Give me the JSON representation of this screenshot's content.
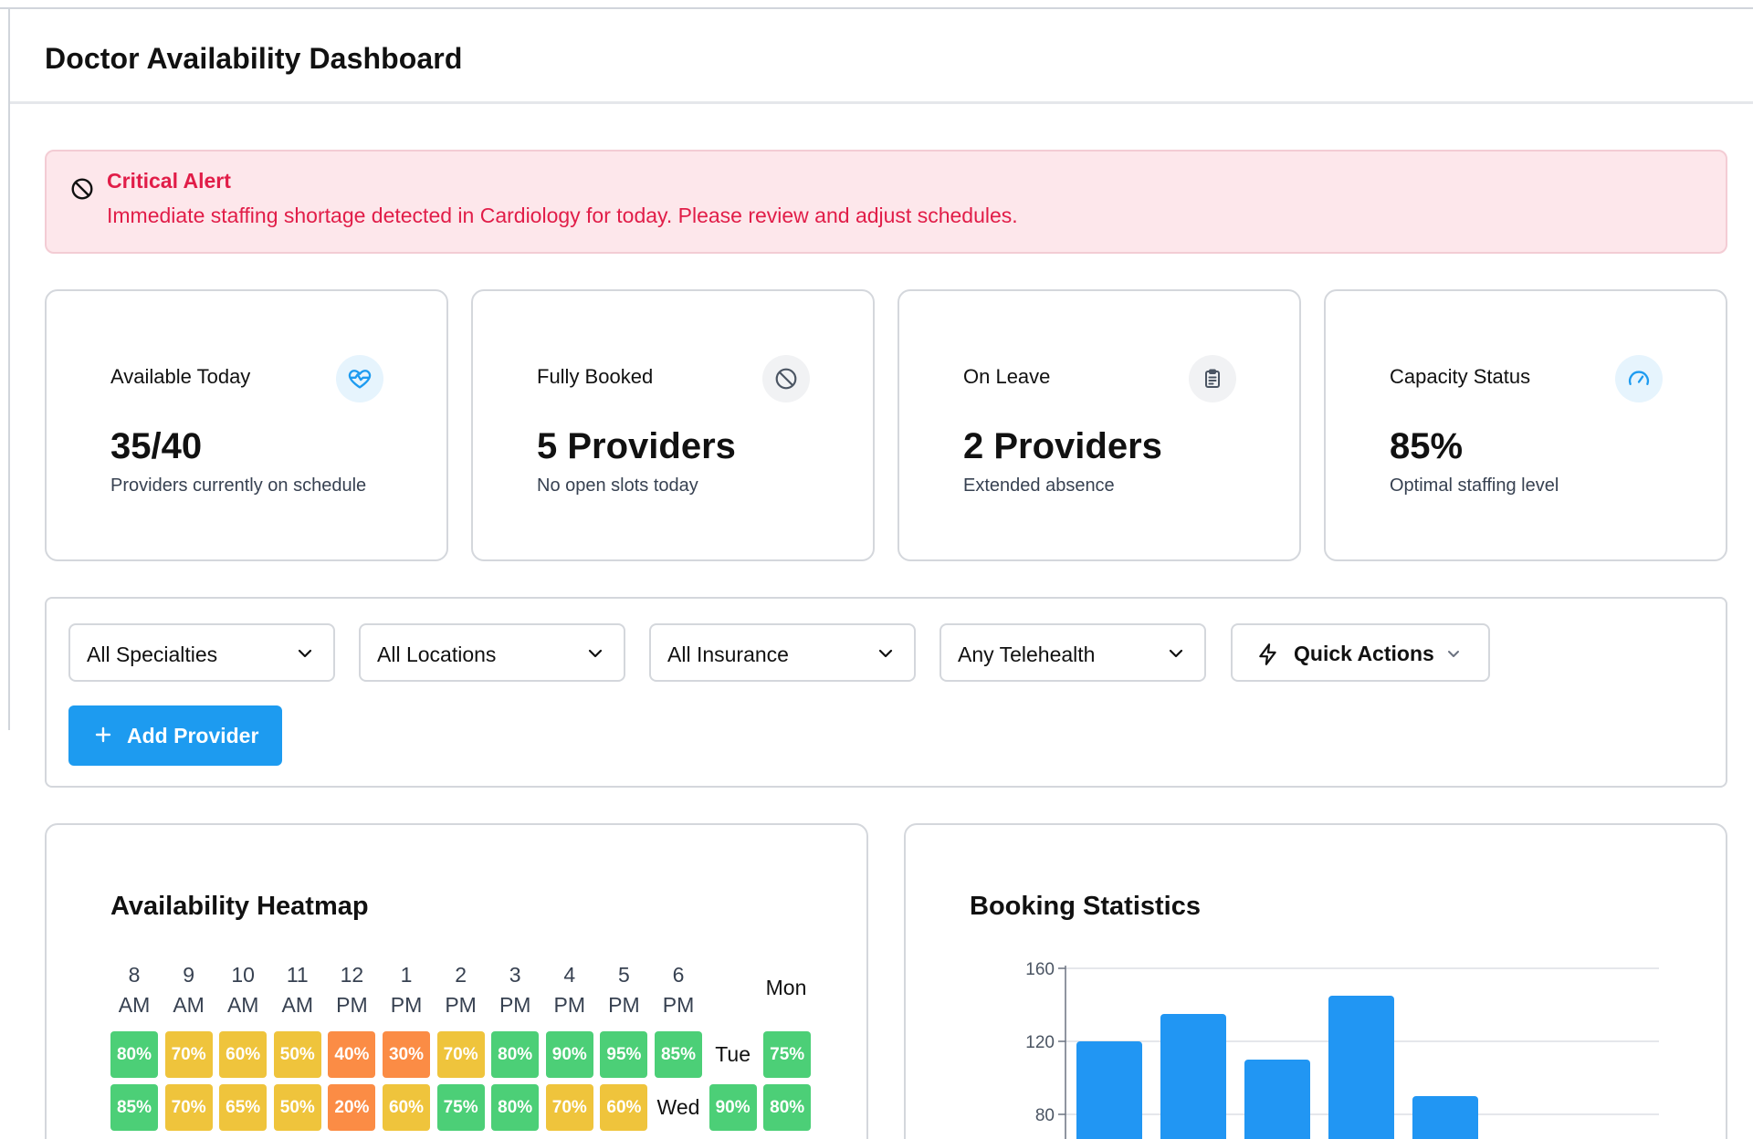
{
  "header": {
    "title": "Doctor Availability Dashboard"
  },
  "alert": {
    "title": "Critical Alert",
    "message": "Immediate staffing shortage detected in Cardiology for today. Please review and adjust schedules.",
    "icon": "ban-icon",
    "color": "#e11d48"
  },
  "cards": [
    {
      "label": "Available Today",
      "value": "35/40",
      "sub": "Providers currently on schedule",
      "icon": "heart-pulse-icon"
    },
    {
      "label": "Fully Booked",
      "value": "5 Providers",
      "sub": "No open slots today",
      "icon": "ban-icon"
    },
    {
      "label": "On Leave",
      "value": "2 Providers",
      "sub": "Extended absence",
      "icon": "clipboard-icon"
    },
    {
      "label": "Capacity Status",
      "value": "85%",
      "sub": "Optimal staffing level",
      "icon": "gauge-icon"
    }
  ],
  "filters": {
    "specialty": "All Specialties",
    "location": "All Locations",
    "insurance": "All Insurance",
    "telehealth": "Any Telehealth",
    "quick_actions": "Quick Actions",
    "add_provider": "Add Provider"
  },
  "heatmap": {
    "title": "Availability Heatmap",
    "hours": [
      {
        "h": "8",
        "p": "AM"
      },
      {
        "h": "9",
        "p": "AM"
      },
      {
        "h": "10",
        "p": "AM"
      },
      {
        "h": "11",
        "p": "AM"
      },
      {
        "h": "12",
        "p": "PM"
      },
      {
        "h": "1",
        "p": "PM"
      },
      {
        "h": "2",
        "p": "PM"
      },
      {
        "h": "3",
        "p": "PM"
      },
      {
        "h": "4",
        "p": "PM"
      },
      {
        "h": "5",
        "p": "PM"
      },
      {
        "h": "6",
        "p": "PM"
      }
    ],
    "header_day": "Mon",
    "row1": {
      "cells": [
        "80%",
        "70%",
        "60%",
        "50%",
        "40%",
        "30%",
        "70%",
        "80%",
        "90%",
        "95%",
        "85%"
      ],
      "day": "Tue",
      "after": "75%"
    },
    "row2": {
      "cells": [
        "85%",
        "70%",
        "65%",
        "50%",
        "20%",
        "60%",
        "75%",
        "80%",
        "70%",
        "60%"
      ],
      "day": "Wed",
      "after": [
        "90%",
        "80%"
      ]
    },
    "colors": {
      "green": "#4ccf77",
      "yellow": "#efc43c",
      "orange": "#fb8c45"
    }
  },
  "booking": {
    "title": "Booking Statistics",
    "chart_data": {
      "type": "bar",
      "values": [
        120,
        135,
        110,
        145,
        90
      ],
      "yticks": [
        "160",
        "120",
        "80"
      ],
      "ylim": [
        0,
        160
      ],
      "color": "#2196f3"
    }
  }
}
